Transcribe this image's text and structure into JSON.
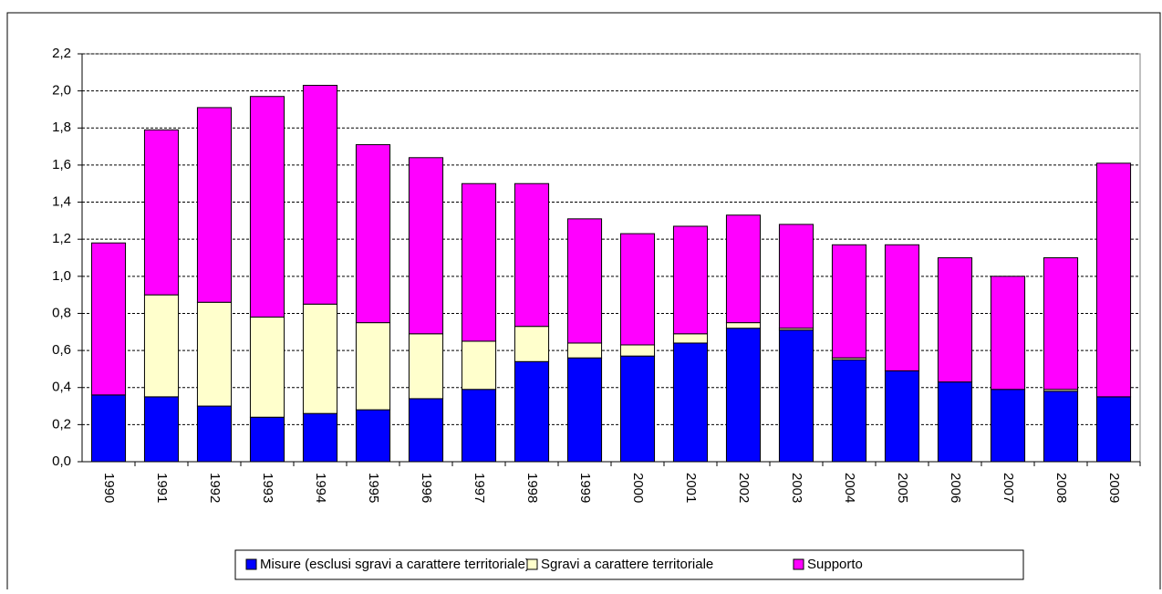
{
  "chart_data": {
    "type": "stacked-bar",
    "categories": [
      "1990",
      "1991",
      "1992",
      "1993",
      "1994",
      "1995",
      "1996",
      "1997",
      "1998",
      "1999",
      "2000",
      "2001",
      "2002",
      "2003",
      "2004",
      "2005",
      "2006",
      "2007",
      "2008",
      "2009"
    ],
    "series": [
      {
        "name": "Misure (esclusi sgravi a carattere territoriale)",
        "color": "#0000ff",
        "values": [
          0.36,
          0.35,
          0.3,
          0.24,
          0.26,
          0.28,
          0.34,
          0.39,
          0.54,
          0.56,
          0.57,
          0.64,
          0.72,
          0.71,
          0.55,
          0.49,
          0.43,
          0.39,
          0.38,
          0.35
        ]
      },
      {
        "name": "Sgravi a carattere territoriale",
        "color": "#ffffcc",
        "values": [
          0,
          0.55,
          0.56,
          0.54,
          0.59,
          0.47,
          0.35,
          0.26,
          0.19,
          0.08,
          0.06,
          0.05,
          0.03,
          0.01,
          0.01,
          0,
          0,
          0,
          0.01,
          0
        ]
      },
      {
        "name": "Supporto",
        "color": "#ff00ff",
        "values": [
          0.82,
          0.89,
          1.05,
          1.19,
          1.18,
          0.96,
          0.95,
          0.85,
          0.77,
          0.67,
          0.6,
          0.58,
          0.58,
          0.56,
          0.61,
          0.68,
          0.67,
          0.61,
          0.71,
          1.26
        ]
      }
    ],
    "ylim": [
      0,
      2.2
    ],
    "yticks": [
      {
        "value": 0,
        "label": "0,0"
      },
      {
        "value": 0.2,
        "label": "0,2"
      },
      {
        "value": 0.4,
        "label": "0,4"
      },
      {
        "value": 0.6,
        "label": "0,6"
      },
      {
        "value": 0.8,
        "label": "0,8"
      },
      {
        "value": 1.0,
        "label": "1,0"
      },
      {
        "value": 1.2,
        "label": "1,2"
      },
      {
        "value": 1.4,
        "label": "1,4"
      },
      {
        "value": 1.6,
        "label": "1,6"
      },
      {
        "value": 1.8,
        "label": "1,8"
      },
      {
        "value": 2.0,
        "label": "2,0"
      },
      {
        "value": 2.2,
        "label": "2,2"
      }
    ],
    "grid": true
  }
}
